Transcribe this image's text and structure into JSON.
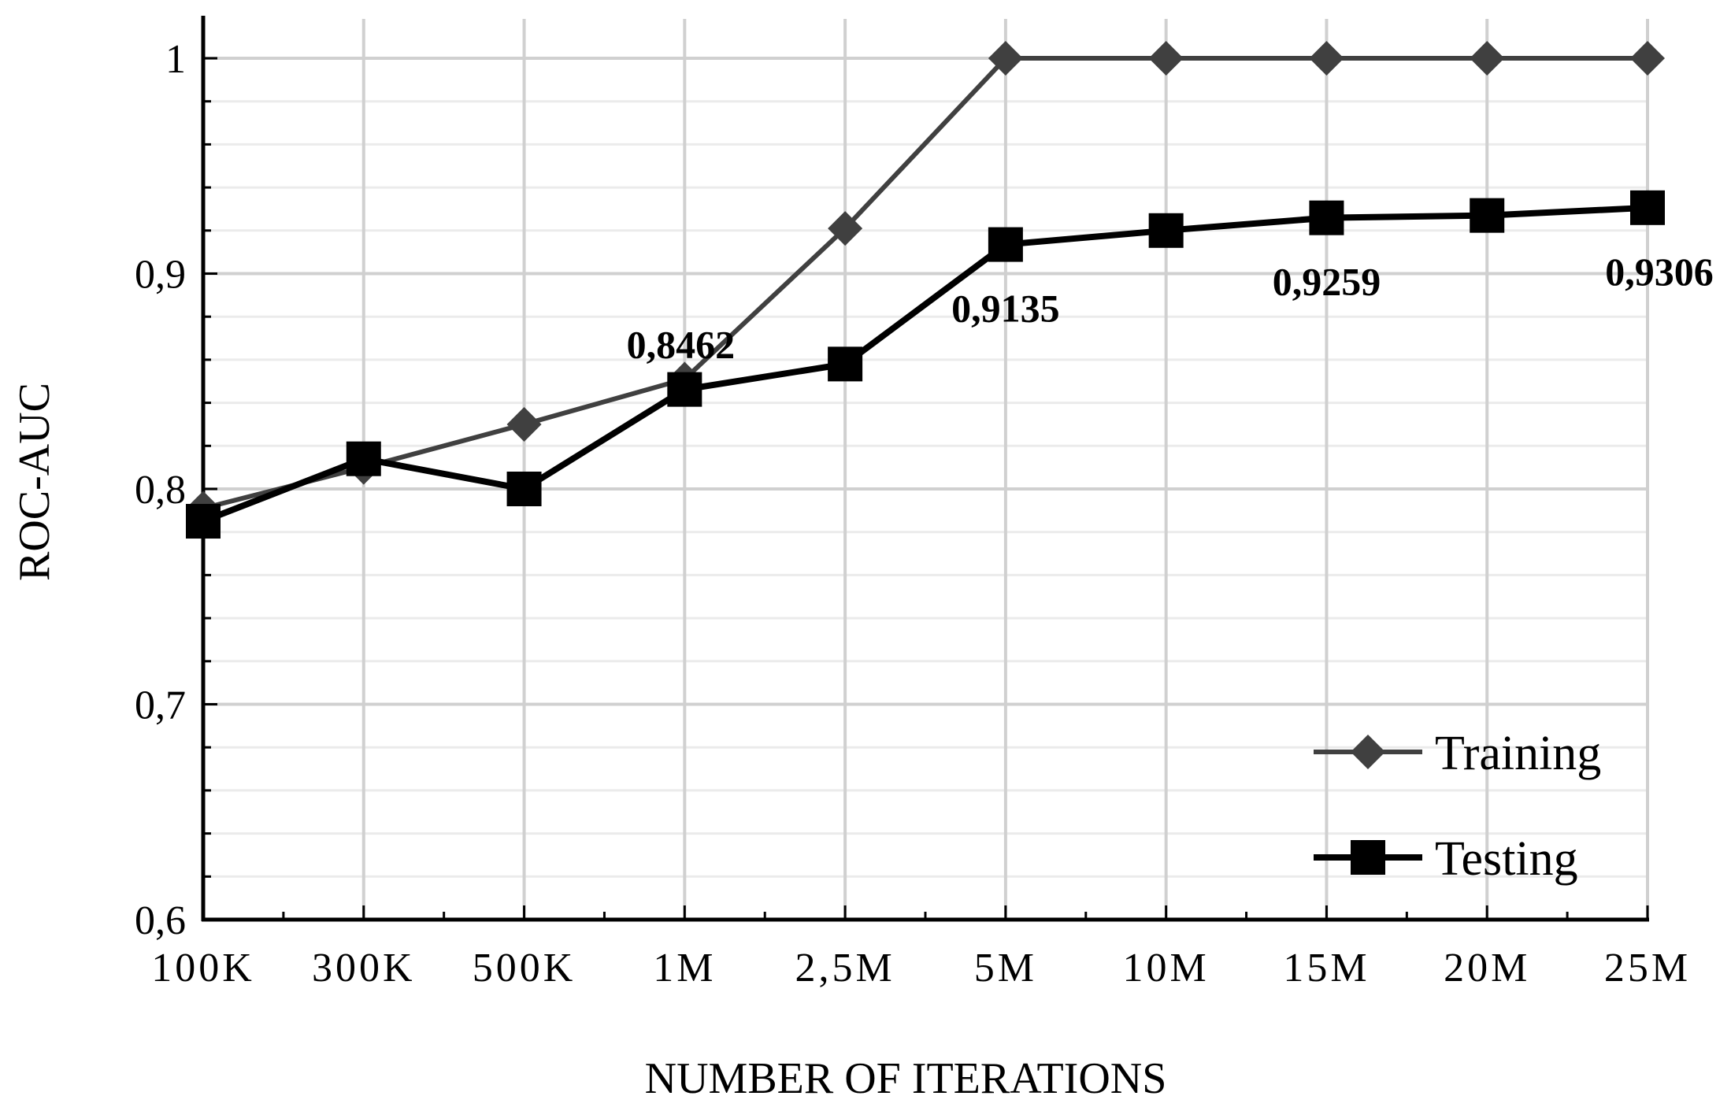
{
  "chart_data": {
    "type": "line",
    "title": "",
    "xlabel": "NUMBER OF ITERATIONS",
    "ylabel": "ROC-AUC",
    "categories": [
      "100K",
      "300K",
      "500K",
      "1M",
      "2,5M",
      "5M",
      "10M",
      "15M",
      "20M",
      "25M"
    ],
    "ylim": [
      0.6,
      1.0
    ],
    "yticks": [
      {
        "value": 0.6,
        "label": "0,6"
      },
      {
        "value": 0.7,
        "label": "0,7"
      },
      {
        "value": 0.8,
        "label": "0,8"
      },
      {
        "value": 0.9,
        "label": "0,9"
      },
      {
        "value": 1.0,
        "label": "1"
      }
    ],
    "grid": true,
    "legend_position": "bottom-right",
    "series": [
      {
        "name": "Training",
        "marker": "diamond",
        "color": "#404040",
        "values": [
          0.791,
          0.81,
          0.83,
          0.851,
          0.921,
          1.0,
          1.0,
          1.0,
          1.0,
          1.0
        ]
      },
      {
        "name": "Testing",
        "marker": "square",
        "color": "#000000",
        "values": [
          0.785,
          0.814,
          0.8,
          0.8462,
          0.858,
          0.9135,
          0.92,
          0.9259,
          0.927,
          0.9306
        ]
      }
    ],
    "annotations": [
      {
        "category": "1M",
        "text": "0,8462"
      },
      {
        "category": "5M",
        "text": "0,9135"
      },
      {
        "category": "15M",
        "text": "0,9259"
      },
      {
        "category": "25M",
        "text": "0,9306"
      }
    ]
  }
}
